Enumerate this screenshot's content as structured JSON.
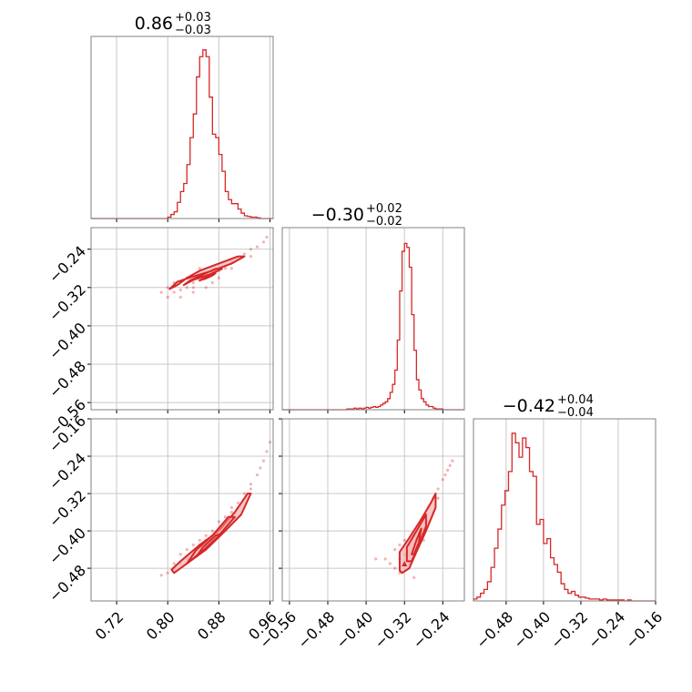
{
  "colors": {
    "accent": "#d62728",
    "fill": "#f4b6b6",
    "grid": "#c8c8c8",
    "frame": "#808080"
  },
  "chart_data": {
    "type": "corner",
    "parameters": [
      {
        "range": [
          0.68,
          0.965
        ],
        "ticks": [
          "0.72",
          "0.80",
          "0.88",
          "0.96"
        ],
        "title": {
          "main": "0.86",
          "sup": "+0.03",
          "sub": "−0.03"
        }
      },
      {
        "range": [
          -0.575,
          -0.195
        ],
        "ticks": [
          "−0.56",
          "−0.48",
          "−0.40",
          "−0.32",
          "−0.24"
        ],
        "title": {
          "main": "−0.30",
          "sup": "+0.02",
          "sub": "−0.02"
        }
      },
      {
        "range": [
          -0.55,
          -0.16
        ],
        "ticks": [
          "−0.48",
          "−0.40",
          "−0.32",
          "−0.24",
          "−0.16"
        ],
        "title": {
          "main": "−0.42",
          "sup": "+0.04",
          "sub": "−0.04"
        }
      }
    ],
    "histograms": [
      {
        "param": 0,
        "ylim": [
          0,
          270
        ],
        "bin_edges": [
          0.8,
          0.805,
          0.81,
          0.815,
          0.82,
          0.825,
          0.83,
          0.835,
          0.84,
          0.845,
          0.85,
          0.855,
          0.86,
          0.865,
          0.87,
          0.875,
          0.88,
          0.885,
          0.89,
          0.895,
          0.9,
          0.905,
          0.91,
          0.915,
          0.92,
          0.925,
          0.93,
          0.935,
          0.94,
          0.945,
          0.95,
          0.955,
          0.96,
          0.965
        ],
        "counts": [
          2,
          6,
          10,
          24,
          40,
          52,
          80,
          120,
          155,
          210,
          240,
          250,
          240,
          180,
          125,
          120,
          95,
          70,
          40,
          28,
          22,
          22,
          14,
          8,
          4,
          3,
          2,
          2,
          1,
          0,
          0,
          0,
          0
        ]
      },
      {
        "param": 1,
        "ylim": [
          0,
          230
        ],
        "bin_edges": [
          -0.44,
          -0.435,
          -0.43,
          -0.425,
          -0.42,
          -0.415,
          -0.41,
          -0.405,
          -0.4,
          -0.395,
          -0.39,
          -0.385,
          -0.38,
          -0.375,
          -0.37,
          -0.365,
          -0.36,
          -0.355,
          -0.35,
          -0.345,
          -0.34,
          -0.335,
          -0.33,
          -0.325,
          -0.32,
          -0.315,
          -0.31,
          -0.305,
          -0.3,
          -0.295,
          -0.29,
          -0.285,
          -0.28,
          -0.275,
          -0.27,
          -0.265,
          -0.26,
          -0.255,
          -0.25,
          -0.245,
          -0.24,
          -0.235,
          -0.23,
          -0.225,
          -0.22
        ],
        "counts": [
          1,
          1,
          1,
          2,
          1,
          2,
          1,
          2,
          3,
          2,
          3,
          4,
          3,
          4,
          6,
          8,
          10,
          14,
          22,
          32,
          50,
          88,
          150,
          200,
          210,
          205,
          180,
          120,
          75,
          38,
          25,
          14,
          10,
          6,
          4,
          4,
          2,
          1,
          1,
          1,
          0,
          0,
          0,
          0
        ]
      },
      {
        "param": 2,
        "ylim": [
          0,
          190
        ],
        "bin_edges": [
          -0.55,
          -0.5425,
          -0.535,
          -0.5275,
          -0.52,
          -0.5125,
          -0.505,
          -0.4975,
          -0.49,
          -0.4825,
          -0.475,
          -0.4675,
          -0.46,
          -0.4525,
          -0.445,
          -0.4375,
          -0.43,
          -0.4225,
          -0.415,
          -0.4075,
          -0.4,
          -0.3925,
          -0.385,
          -0.3775,
          -0.37,
          -0.3625,
          -0.355,
          -0.3475,
          -0.34,
          -0.3325,
          -0.325,
          -0.3175,
          -0.31,
          -0.3025,
          -0.295,
          -0.2875,
          -0.28,
          -0.2725,
          -0.265,
          -0.2575,
          -0.25,
          -0.2425,
          -0.235,
          -0.2275,
          -0.22,
          -0.2125,
          -0.205,
          -0.1975,
          -0.19,
          -0.1825,
          -0.175,
          -0.1675,
          -0.16
        ],
        "counts": [
          2,
          4,
          8,
          12,
          20,
          35,
          55,
          75,
          100,
          115,
          135,
          175,
          165,
          150,
          170,
          160,
          135,
          130,
          80,
          85,
          60,
          65,
          45,
          38,
          30,
          18,
          12,
          8,
          10,
          6,
          4,
          4,
          3,
          2,
          2,
          2,
          1,
          2,
          1,
          1,
          1,
          1,
          1,
          0,
          1,
          0,
          0,
          0,
          0,
          0,
          0,
          0
        ]
      }
    ],
    "joint": [
      {
        "x_param": 0,
        "y_param": 1,
        "points": [
          [
            0.8,
            -0.34
          ],
          [
            0.81,
            -0.33
          ],
          [
            0.82,
            -0.325
          ],
          [
            0.83,
            -0.32
          ],
          [
            0.84,
            -0.31
          ],
          [
            0.85,
            -0.305
          ],
          [
            0.86,
            -0.3
          ],
          [
            0.87,
            -0.29
          ],
          [
            0.88,
            -0.285
          ],
          [
            0.89,
            -0.275
          ],
          [
            0.9,
            -0.265
          ],
          [
            0.91,
            -0.26
          ],
          [
            0.92,
            -0.25
          ],
          [
            0.93,
            -0.24
          ],
          [
            0.94,
            -0.235
          ],
          [
            0.95,
            -0.225
          ],
          [
            0.82,
            -0.34
          ],
          [
            0.84,
            -0.33
          ],
          [
            0.86,
            -0.32
          ],
          [
            0.88,
            -0.3
          ],
          [
            0.8,
            -0.32
          ],
          [
            0.83,
            -0.3
          ],
          [
            0.86,
            -0.29
          ],
          [
            0.89,
            -0.28
          ],
          [
            0.79,
            -0.33
          ],
          [
            0.85,
            -0.28
          ],
          [
            0.87,
            -0.31
          ],
          [
            0.9,
            -0.28
          ],
          [
            0.81,
            -0.31
          ],
          [
            0.84,
            -0.32
          ],
          [
            0.93,
            -0.255
          ],
          [
            0.955,
            -0.215
          ]
        ],
        "contours": [
          [
            [
              0.803,
              -0.323
            ],
            [
              0.815,
              -0.308
            ],
            [
              0.84,
              -0.297
            ],
            [
              0.87,
              -0.285
            ],
            [
              0.9,
              -0.27
            ],
            [
              0.92,
              -0.255
            ],
            [
              0.91,
              -0.255
            ],
            [
              0.88,
              -0.27
            ],
            [
              0.85,
              -0.285
            ],
            [
              0.83,
              -0.3
            ],
            [
              0.815,
              -0.315
            ]
          ],
          [
            [
              0.825,
              -0.315
            ],
            [
              0.84,
              -0.304
            ],
            [
              0.865,
              -0.293
            ],
            [
              0.885,
              -0.281
            ],
            [
              0.875,
              -0.281
            ],
            [
              0.855,
              -0.293
            ],
            [
              0.835,
              -0.305
            ]
          ],
          [
            [
              0.85,
              -0.305
            ],
            [
              0.86,
              -0.298
            ],
            [
              0.875,
              -0.29
            ],
            [
              0.87,
              -0.295
            ],
            [
              0.858,
              -0.302
            ]
          ]
        ]
      },
      {
        "x_param": 0,
        "y_param": 2,
        "points": [
          [
            0.8,
            -0.49
          ],
          [
            0.81,
            -0.47
          ],
          [
            0.82,
            -0.45
          ],
          [
            0.83,
            -0.44
          ],
          [
            0.84,
            -0.43
          ],
          [
            0.85,
            -0.42
          ],
          [
            0.86,
            -0.41
          ],
          [
            0.87,
            -0.4
          ],
          [
            0.88,
            -0.38
          ],
          [
            0.89,
            -0.37
          ],
          [
            0.9,
            -0.35
          ],
          [
            0.91,
            -0.34
          ],
          [
            0.92,
            -0.32
          ],
          [
            0.93,
            -0.3
          ],
          [
            0.94,
            -0.28
          ],
          [
            0.95,
            -0.25
          ],
          [
            0.955,
            -0.23
          ],
          [
            0.96,
            -0.21
          ],
          [
            0.81,
            -0.48
          ],
          [
            0.83,
            -0.46
          ],
          [
            0.85,
            -0.43
          ],
          [
            0.87,
            -0.41
          ],
          [
            0.89,
            -0.38
          ],
          [
            0.91,
            -0.35
          ],
          [
            0.82,
            -0.47
          ],
          [
            0.86,
            -0.42
          ],
          [
            0.9,
            -0.36
          ],
          [
            0.93,
            -0.31
          ],
          [
            0.945,
            -0.265
          ],
          [
            0.79,
            -0.495
          ]
        ],
        "contours": [
          [
            [
              0.81,
              -0.49
            ],
            [
              0.83,
              -0.47
            ],
            [
              0.86,
              -0.44
            ],
            [
              0.89,
              -0.4
            ],
            [
              0.915,
              -0.365
            ],
            [
              0.93,
              -0.32
            ],
            [
              0.925,
              -0.32
            ],
            [
              0.905,
              -0.36
            ],
            [
              0.88,
              -0.4
            ],
            [
              0.85,
              -0.43
            ],
            [
              0.82,
              -0.465
            ],
            [
              0.806,
              -0.483
            ]
          ],
          [
            [
              0.83,
              -0.47
            ],
            [
              0.855,
              -0.442
            ],
            [
              0.88,
              -0.41
            ],
            [
              0.905,
              -0.37
            ],
            [
              0.895,
              -0.37
            ],
            [
              0.87,
              -0.41
            ],
            [
              0.845,
              -0.44
            ]
          ],
          [
            [
              0.845,
              -0.455
            ],
            [
              0.865,
              -0.43
            ],
            [
              0.885,
              -0.405
            ],
            [
              0.875,
              -0.41
            ],
            [
              0.855,
              -0.435
            ]
          ]
        ]
      },
      {
        "x_param": 1,
        "y_param": 2,
        "points": [
          [
            -0.34,
            -0.48
          ],
          [
            -0.33,
            -0.46
          ],
          [
            -0.32,
            -0.45
          ],
          [
            -0.31,
            -0.43
          ],
          [
            -0.3,
            -0.41
          ],
          [
            -0.29,
            -0.39
          ],
          [
            -0.28,
            -0.37
          ],
          [
            -0.27,
            -0.35
          ],
          [
            -0.26,
            -0.33
          ],
          [
            -0.25,
            -0.31
          ],
          [
            -0.24,
            -0.29
          ],
          [
            -0.23,
            -0.27
          ],
          [
            -0.22,
            -0.25
          ],
          [
            -0.35,
            -0.47
          ],
          [
            -0.33,
            -0.49
          ],
          [
            -0.31,
            -0.47
          ],
          [
            -0.3,
            -0.44
          ],
          [
            -0.28,
            -0.42
          ],
          [
            -0.32,
            -0.42
          ],
          [
            -0.29,
            -0.41
          ],
          [
            -0.27,
            -0.38
          ],
          [
            -0.36,
            -0.46
          ],
          [
            -0.34,
            -0.44
          ],
          [
            -0.26,
            -0.36
          ],
          [
            -0.25,
            -0.33
          ],
          [
            -0.38,
            -0.46
          ],
          [
            -0.3,
            -0.5
          ],
          [
            -0.235,
            -0.28
          ],
          [
            -0.225,
            -0.26
          ],
          [
            -0.33,
            -0.43
          ]
        ],
        "contours": [
          [
            [
              -0.33,
              -0.485
            ],
            [
              -0.33,
              -0.445
            ],
            [
              -0.31,
              -0.415
            ],
            [
              -0.285,
              -0.375
            ],
            [
              -0.265,
              -0.34
            ],
            [
              -0.255,
              -0.32
            ],
            [
              -0.255,
              -0.35
            ],
            [
              -0.275,
              -0.4
            ],
            [
              -0.295,
              -0.445
            ],
            [
              -0.31,
              -0.48
            ],
            [
              -0.325,
              -0.49
            ]
          ],
          [
            [
              -0.315,
              -0.465
            ],
            [
              -0.315,
              -0.435
            ],
            [
              -0.295,
              -0.4
            ],
            [
              -0.275,
              -0.365
            ],
            [
              -0.275,
              -0.39
            ],
            [
              -0.29,
              -0.43
            ],
            [
              -0.305,
              -0.465
            ]
          ],
          [
            [
              -0.305,
              -0.45
            ],
            [
              -0.295,
              -0.42
            ],
            [
              -0.285,
              -0.395
            ],
            [
              -0.29,
              -0.425
            ],
            [
              -0.3,
              -0.45
            ]
          ]
        ],
        "marker": [
          -0.32,
          -0.47
        ]
      }
    ]
  }
}
